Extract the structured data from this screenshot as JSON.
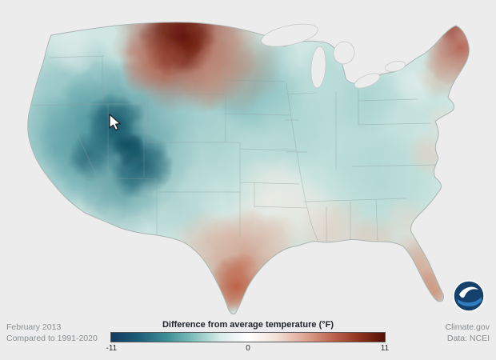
{
  "map": {
    "description": "Contiguous U.S. map of difference from average temperature",
    "anomaly_summary": [
      {
        "area": "Northern Rockies and Northern Plains (Montana, North Dakota)",
        "anomaly_f": "+6 to +11",
        "category": "much warmer than average"
      },
      {
        "area": "Great Basin and central Rockies (Nevada, Utah, western Colorado)",
        "anomaly_f": "-6 to -11",
        "category": "much cooler than average"
      },
      {
        "area": "West and central Plains",
        "anomaly_f": "-2 to -6",
        "category": "cooler than average"
      },
      {
        "area": "Midwest and eastern U.S.",
        "anomaly_f": "-1 to -3",
        "category": "slightly cooler than average"
      },
      {
        "area": "Southern Texas",
        "anomaly_f": "+2 to +6",
        "category": "warmer than average"
      },
      {
        "area": "Gulf Coast and Florida",
        "anomaly_f": "+1 to +4",
        "category": "warmer than average"
      },
      {
        "area": "Maine and northern New England",
        "anomaly_f": "+2 to +6",
        "category": "warmer than average"
      }
    ]
  },
  "legend": {
    "title": "Difference from average temperature",
    "unit": "(°F)",
    "min": -11,
    "mid": 0,
    "max": 11,
    "tick_labels": [
      "-11",
      "0",
      "11"
    ],
    "gradient": [
      "#123a5e",
      "#1d5d77",
      "#3c8d95",
      "#7fc0bd",
      "#d9ece8",
      "#ffffff",
      "#f3e2da",
      "#e0ab99",
      "#c16a55",
      "#93351f",
      "#540f06"
    ]
  },
  "footer": {
    "period": "February 2013",
    "baseline": "Compared to 1991-2020",
    "site": "Climate.gov",
    "source": "Data: NCEI"
  },
  "icons": {
    "noaa_logo": "noaa-logo",
    "cursor": "mouse-cursor-icon"
  }
}
